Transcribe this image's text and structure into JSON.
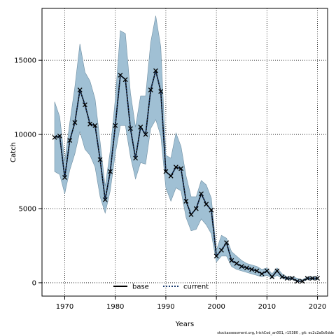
{
  "chart_data": {
    "type": "line",
    "xlabel": "Years",
    "ylabel": "Catch",
    "xlim": [
      1965.5,
      2022
    ],
    "ylim": [
      -900,
      18500
    ],
    "xticks": [
      1970,
      1980,
      1990,
      2000,
      2010,
      2020
    ],
    "yticks": [
      0,
      5000,
      10000,
      15000
    ],
    "grid": true,
    "legend": {
      "placement": "bottom-center",
      "entries": [
        {
          "label": "base",
          "style": "solid",
          "color": "#000000"
        },
        {
          "label": "current",
          "style": "dotted",
          "color": "#1a3b6e"
        }
      ]
    },
    "band_color": "#a0c0d4",
    "band_edge_color": "#6f8fa3",
    "x": [
      1968,
      1969,
      1970,
      1971,
      1972,
      1973,
      1974,
      1975,
      1976,
      1977,
      1978,
      1979,
      1980,
      1981,
      1982,
      1983,
      1984,
      1985,
      1986,
      1987,
      1988,
      1989,
      1990,
      1991,
      1992,
      1993,
      1994,
      1995,
      1996,
      1997,
      1998,
      1999,
      2000,
      2001,
      2002,
      2003,
      2004,
      2005,
      2006,
      2007,
      2008,
      2009,
      2010,
      2011,
      2012,
      2013,
      2014,
      2015,
      2016,
      2017,
      2018,
      2019,
      2020
    ],
    "series": [
      {
        "name": "current",
        "values": [
          9800,
          9900,
          7100,
          9600,
          10800,
          13000,
          12000,
          10700,
          10600,
          8300,
          5600,
          7500,
          10600,
          14000,
          13700,
          10400,
          8400,
          10500,
          10000,
          13000,
          14300,
          12900,
          7500,
          7200,
          7800,
          7700,
          5500,
          4600,
          5000,
          6000,
          5300,
          4900,
          1800,
          2200,
          2700,
          1500,
          1300,
          1100,
          1000,
          900,
          800,
          600,
          800,
          400,
          800,
          400,
          300,
          300,
          100,
          100,
          300,
          300,
          300
        ]
      }
    ],
    "band": {
      "upper": [
        12200,
        11200,
        8200,
        10800,
        13200,
        16100,
        14200,
        13600,
        12400,
        9500,
        6500,
        8900,
        12400,
        17000,
        16800,
        12800,
        10500,
        12600,
        12600,
        16200,
        18000,
        15900,
        8600,
        8400,
        10100,
        9200,
        7200,
        5800,
        5800,
        6900,
        6600,
        5700,
        2200,
        3200,
        3000,
        2100,
        1800,
        1500,
        1300,
        1200,
        1100,
        900,
        1000,
        600,
        1000,
        600,
        400,
        400,
        300,
        200,
        400,
        400,
        400
      ],
      "lower": [
        7500,
        7300,
        6000,
        7600,
        8700,
        10200,
        9000,
        8600,
        7800,
        5800,
        4700,
        6200,
        8700,
        10600,
        10600,
        8500,
        7000,
        8100,
        8000,
        10400,
        11000,
        9900,
        6400,
        5500,
        6400,
        6200,
        4400,
        3500,
        3600,
        4300,
        3900,
        3300,
        1400,
        1800,
        1800,
        1100,
        900,
        800,
        700,
        600,
        500,
        400,
        500,
        300,
        500,
        300,
        200,
        200,
        100,
        100,
        200,
        200,
        200
      ]
    },
    "annotation": "stockassessment.org, IrishCod_an001, r15380 , git: ec2c2a0c6dde"
  }
}
